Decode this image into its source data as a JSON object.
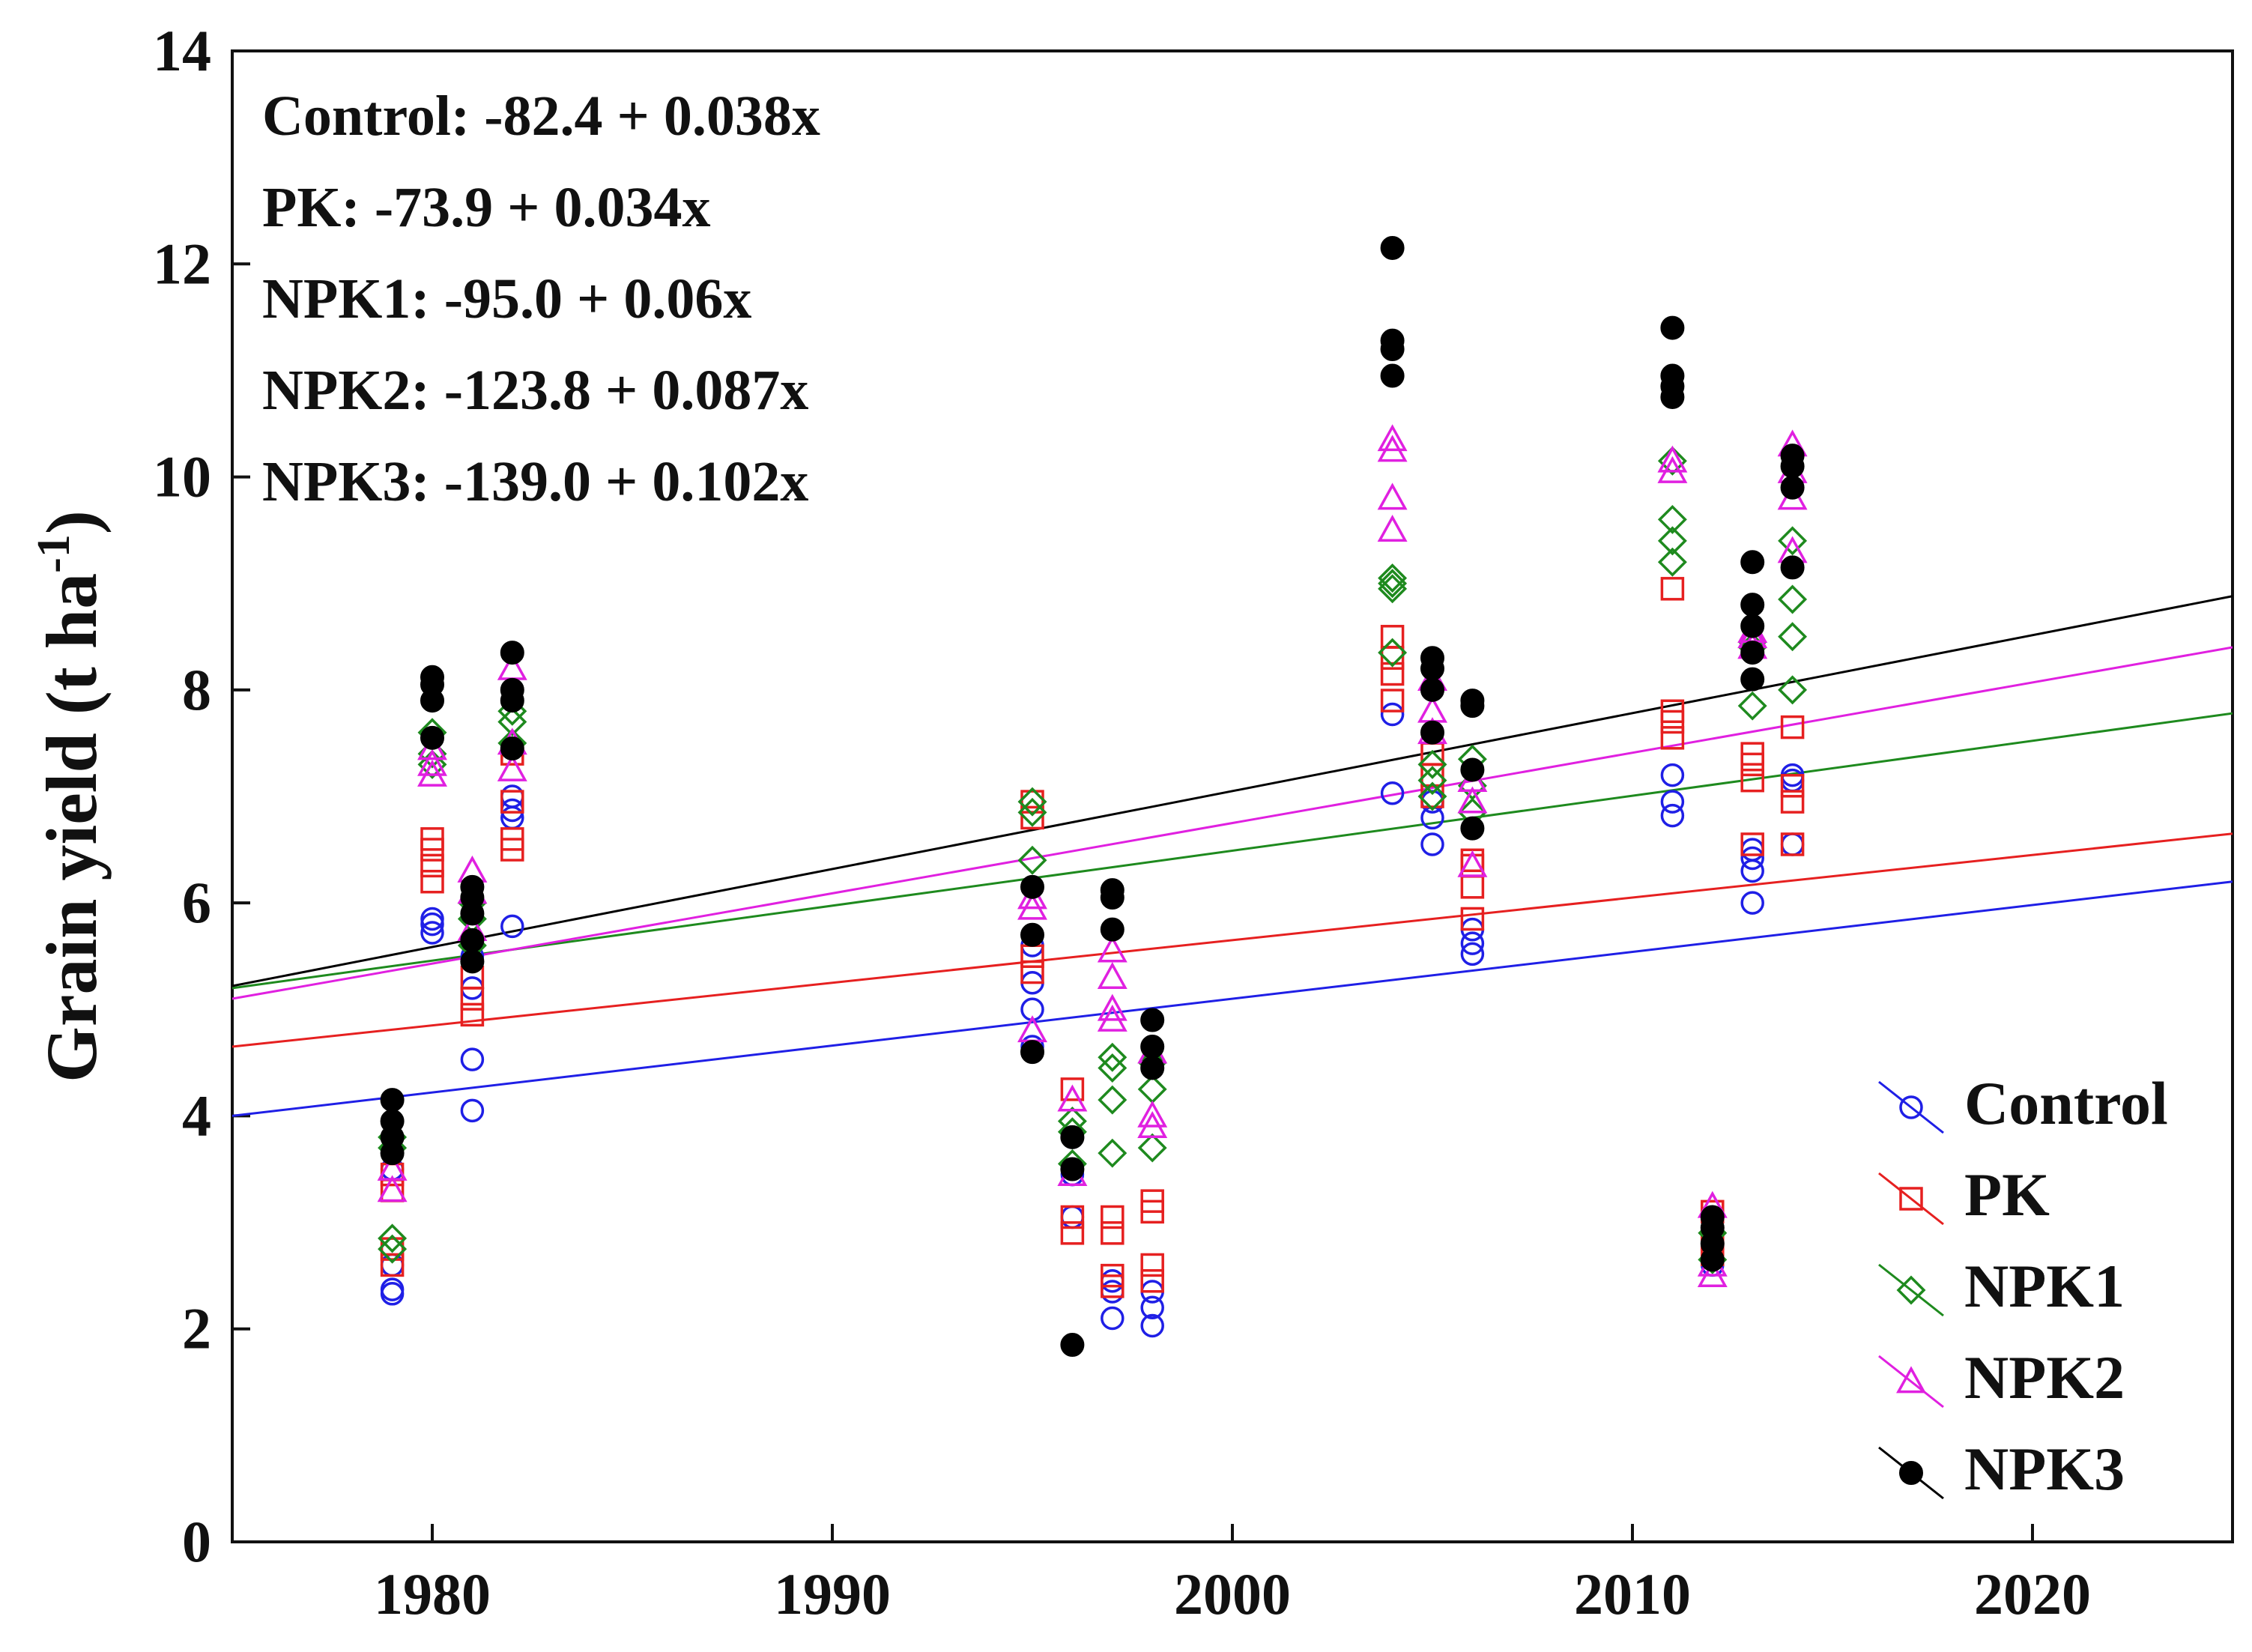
{
  "chart_data": {
    "type": "scatter",
    "title": "",
    "xlabel": "",
    "ylabel": "Grain yield (t ha",
    "ylabel_superscript": "-1",
    "ylabel_close": ")",
    "xlim": [
      1975,
      2025
    ],
    "ylim": [
      0,
      14
    ],
    "x_ticks": [
      1980,
      1990,
      2000,
      2010,
      2020
    ],
    "y_ticks": [
      0,
      2,
      4,
      6,
      8,
      10,
      12,
      14
    ],
    "grid": false,
    "legend_position": "bottom-right",
    "equations": [
      "Control: -82.4 + 0.038x",
      "PK: -73.9 + 0.034x",
      "NPK1: -95.0 + 0.06x",
      "NPK2: -123.8 + 0.087x",
      "NPK3: -139.0 + 0.102x"
    ],
    "series": [
      {
        "name": "Control",
        "color": "#1f1fe6",
        "marker": "circle-open",
        "trend": {
          "y_at_1975": 4.0,
          "y_at_2025": 6.2
        },
        "points": [
          [
            1979,
            2.33
          ],
          [
            1979,
            2.37
          ],
          [
            1979,
            2.6
          ],
          [
            1979,
            3.5
          ],
          [
            1980,
            5.72
          ],
          [
            1980,
            5.8
          ],
          [
            1980,
            5.85
          ],
          [
            1981,
            4.05
          ],
          [
            1981,
            4.53
          ],
          [
            1981,
            5.2
          ],
          [
            1981,
            5.5
          ],
          [
            1982,
            5.78
          ],
          [
            1982,
            6.8
          ],
          [
            1982,
            6.87
          ],
          [
            1982,
            7.0
          ],
          [
            1995,
            4.65
          ],
          [
            1995,
            5.0
          ],
          [
            1995,
            5.25
          ],
          [
            1995,
            5.6
          ],
          [
            1996,
            3.05
          ],
          [
            1996,
            3.45
          ],
          [
            1996,
            3.8
          ],
          [
            1997,
            2.1
          ],
          [
            1997,
            2.35
          ],
          [
            1997,
            2.45
          ],
          [
            1998,
            2.03
          ],
          [
            1998,
            2.2
          ],
          [
            1998,
            2.35
          ],
          [
            2004,
            7.03
          ],
          [
            2004,
            7.77
          ],
          [
            2005,
            6.55
          ],
          [
            2005,
            6.8
          ],
          [
            2005,
            6.95
          ],
          [
            2006,
            5.52
          ],
          [
            2006,
            5.62
          ],
          [
            2006,
            5.75
          ],
          [
            2011,
            6.82
          ],
          [
            2011,
            6.95
          ],
          [
            2011,
            7.2
          ],
          [
            2012,
            2.6
          ],
          [
            2012,
            2.8
          ],
          [
            2013,
            6.0
          ],
          [
            2013,
            6.3
          ],
          [
            2013,
            6.42
          ],
          [
            2013,
            6.5
          ],
          [
            2014,
            6.55
          ],
          [
            2014,
            7.15
          ],
          [
            2014,
            7.2
          ]
        ]
      },
      {
        "name": "PK",
        "color": "#e62020",
        "marker": "square-open",
        "trend": {
          "y_at_1975": 4.65,
          "y_at_2025": 6.65
        },
        "points": [
          [
            1979,
            2.6
          ],
          [
            1979,
            2.75
          ],
          [
            1979,
            3.3
          ],
          [
            1979,
            3.45
          ],
          [
            1980,
            6.2
          ],
          [
            1980,
            6.35
          ],
          [
            1980,
            6.5
          ],
          [
            1980,
            6.6
          ],
          [
            1981,
            4.95
          ],
          [
            1981,
            5.1
          ],
          [
            1981,
            5.3
          ],
          [
            1982,
            6.5
          ],
          [
            1982,
            6.6
          ],
          [
            1982,
            6.95
          ],
          [
            1982,
            7.4
          ],
          [
            1995,
            5.35
          ],
          [
            1995,
            5.5
          ],
          [
            1995,
            6.8
          ],
          [
            1995,
            6.95
          ],
          [
            1996,
            2.9
          ],
          [
            1996,
            3.05
          ],
          [
            1996,
            4.25
          ],
          [
            1997,
            2.4
          ],
          [
            1997,
            2.5
          ],
          [
            1997,
            2.9
          ],
          [
            1997,
            3.05
          ],
          [
            1998,
            2.45
          ],
          [
            1998,
            2.6
          ],
          [
            1998,
            3.1
          ],
          [
            1998,
            3.2
          ],
          [
            2004,
            7.9
          ],
          [
            2004,
            8.15
          ],
          [
            2004,
            8.3
          ],
          [
            2004,
            8.5
          ],
          [
            2005,
            7.0
          ],
          [
            2005,
            7.2
          ],
          [
            2005,
            7.4
          ],
          [
            2006,
            5.85
          ],
          [
            2006,
            6.15
          ],
          [
            2006,
            6.35
          ],
          [
            2006,
            6.4
          ],
          [
            2011,
            7.55
          ],
          [
            2011,
            7.7
          ],
          [
            2011,
            7.8
          ],
          [
            2011,
            8.95
          ],
          [
            2012,
            2.7
          ],
          [
            2012,
            2.85
          ],
          [
            2012,
            3.1
          ],
          [
            2013,
            6.55
          ],
          [
            2013,
            7.15
          ],
          [
            2013,
            7.3
          ],
          [
            2013,
            7.4
          ],
          [
            2014,
            6.55
          ],
          [
            2014,
            6.95
          ],
          [
            2014,
            7.1
          ],
          [
            2014,
            7.65
          ]
        ]
      },
      {
        "name": "NPK1",
        "color": "#1e8a1e",
        "marker": "diamond-open",
        "trend": {
          "y_at_1975": 5.2,
          "y_at_2025": 7.78
        },
        "points": [
          [
            1979,
            2.75
          ],
          [
            1979,
            2.85
          ],
          [
            1979,
            3.7
          ],
          [
            1979,
            3.8
          ],
          [
            1980,
            7.3
          ],
          [
            1980,
            7.4
          ],
          [
            1980,
            7.6
          ],
          [
            1981,
            5.6
          ],
          [
            1981,
            5.85
          ],
          [
            1981,
            6.0
          ],
          [
            1982,
            7.5
          ],
          [
            1982,
            7.7
          ],
          [
            1982,
            7.8
          ],
          [
            1995,
            6.4
          ],
          [
            1995,
            6.85
          ],
          [
            1995,
            6.95
          ],
          [
            1996,
            3.55
          ],
          [
            1996,
            3.85
          ],
          [
            1996,
            3.95
          ],
          [
            1997,
            3.65
          ],
          [
            1997,
            4.15
          ],
          [
            1997,
            4.45
          ],
          [
            1997,
            4.55
          ],
          [
            1998,
            3.7
          ],
          [
            1998,
            4.25
          ],
          [
            1998,
            4.5
          ],
          [
            2004,
            8.35
          ],
          [
            2004,
            8.95
          ],
          [
            2004,
            9.0
          ],
          [
            2004,
            9.05
          ],
          [
            2005,
            7.0
          ],
          [
            2005,
            7.15
          ],
          [
            2005,
            7.3
          ],
          [
            2006,
            6.85
          ],
          [
            2006,
            7.1
          ],
          [
            2006,
            7.35
          ],
          [
            2011,
            9.2
          ],
          [
            2011,
            9.4
          ],
          [
            2011,
            9.6
          ],
          [
            2011,
            10.15
          ],
          [
            2012,
            2.65
          ],
          [
            2012,
            2.9
          ],
          [
            2013,
            7.85
          ],
          [
            2013,
            8.4
          ],
          [
            2013,
            8.45
          ],
          [
            2014,
            8.0
          ],
          [
            2014,
            8.5
          ],
          [
            2014,
            8.85
          ],
          [
            2014,
            9.4
          ]
        ]
      },
      {
        "name": "NPK2",
        "color": "#e020e0",
        "marker": "triangle-open",
        "trend": {
          "y_at_1975": 5.1,
          "y_at_2025": 8.4
        },
        "points": [
          [
            1979,
            3.3
          ],
          [
            1979,
            3.5
          ],
          [
            1980,
            7.2
          ],
          [
            1980,
            7.3
          ],
          [
            1980,
            7.45
          ],
          [
            1981,
            5.75
          ],
          [
            1981,
            6.1
          ],
          [
            1981,
            6.3
          ],
          [
            1982,
            7.25
          ],
          [
            1982,
            7.5
          ],
          [
            1982,
            8.2
          ],
          [
            1995,
            4.8
          ],
          [
            1995,
            5.95
          ],
          [
            1995,
            6.05
          ],
          [
            1996,
            3.45
          ],
          [
            1996,
            4.15
          ],
          [
            1997,
            4.9
          ],
          [
            1997,
            5.0
          ],
          [
            1997,
            5.3
          ],
          [
            1997,
            5.55
          ],
          [
            1998,
            3.9
          ],
          [
            1998,
            4.0
          ],
          [
            1998,
            4.6
          ],
          [
            2004,
            9.5
          ],
          [
            2004,
            9.8
          ],
          [
            2004,
            10.25
          ],
          [
            2004,
            10.35
          ],
          [
            2005,
            7.6
          ],
          [
            2005,
            7.8
          ],
          [
            2005,
            8.1
          ],
          [
            2006,
            6.35
          ],
          [
            2006,
            6.95
          ],
          [
            2006,
            7.15
          ],
          [
            2011,
            10.05
          ],
          [
            2011,
            10.15
          ],
          [
            2012,
            2.5
          ],
          [
            2012,
            2.6
          ],
          [
            2012,
            3.15
          ],
          [
            2013,
            8.4
          ],
          [
            2013,
            8.5
          ],
          [
            2013,
            8.55
          ],
          [
            2014,
            9.3
          ],
          [
            2014,
            9.8
          ],
          [
            2014,
            10.05
          ],
          [
            2014,
            10.3
          ]
        ]
      },
      {
        "name": "NPK3",
        "color": "#000000",
        "marker": "circle-filled",
        "trend": {
          "y_at_1975": 5.22,
          "y_at_2025": 8.88
        },
        "points": [
          [
            1979,
            3.65
          ],
          [
            1979,
            3.8
          ],
          [
            1979,
            3.95
          ],
          [
            1979,
            4.15
          ],
          [
            1980,
            7.55
          ],
          [
            1980,
            7.9
          ],
          [
            1980,
            8.05
          ],
          [
            1980,
            8.12
          ],
          [
            1981,
            5.45
          ],
          [
            1981,
            5.65
          ],
          [
            1981,
            5.9
          ],
          [
            1981,
            6.05
          ],
          [
            1981,
            6.15
          ],
          [
            1982,
            7.45
          ],
          [
            1982,
            7.9
          ],
          [
            1982,
            8.0
          ],
          [
            1982,
            8.35
          ],
          [
            1995,
            4.6
          ],
          [
            1995,
            5.7
          ],
          [
            1995,
            6.15
          ],
          [
            1996,
            1.85
          ],
          [
            1996,
            3.5
          ],
          [
            1996,
            3.8
          ],
          [
            1997,
            5.75
          ],
          [
            1997,
            6.05
          ],
          [
            1997,
            6.12
          ],
          [
            1998,
            4.45
          ],
          [
            1998,
            4.65
          ],
          [
            1998,
            4.9
          ],
          [
            2004,
            10.95
          ],
          [
            2004,
            11.2
          ],
          [
            2004,
            11.28
          ],
          [
            2004,
            12.15
          ],
          [
            2005,
            7.6
          ],
          [
            2005,
            8.0
          ],
          [
            2005,
            8.2
          ],
          [
            2005,
            8.3
          ],
          [
            2006,
            6.7
          ],
          [
            2006,
            7.25
          ],
          [
            2006,
            7.85
          ],
          [
            2006,
            7.9
          ],
          [
            2011,
            10.75
          ],
          [
            2011,
            10.85
          ],
          [
            2011,
            10.95
          ],
          [
            2011,
            11.4
          ],
          [
            2012,
            2.65
          ],
          [
            2012,
            2.8
          ],
          [
            2012,
            2.95
          ],
          [
            2012,
            3.05
          ],
          [
            2013,
            8.1
          ],
          [
            2013,
            8.35
          ],
          [
            2013,
            8.6
          ],
          [
            2013,
            8.8
          ],
          [
            2013,
            9.2
          ],
          [
            2014,
            9.15
          ],
          [
            2014,
            9.9
          ],
          [
            2014,
            10.1
          ],
          [
            2014,
            10.2
          ]
        ]
      }
    ]
  }
}
